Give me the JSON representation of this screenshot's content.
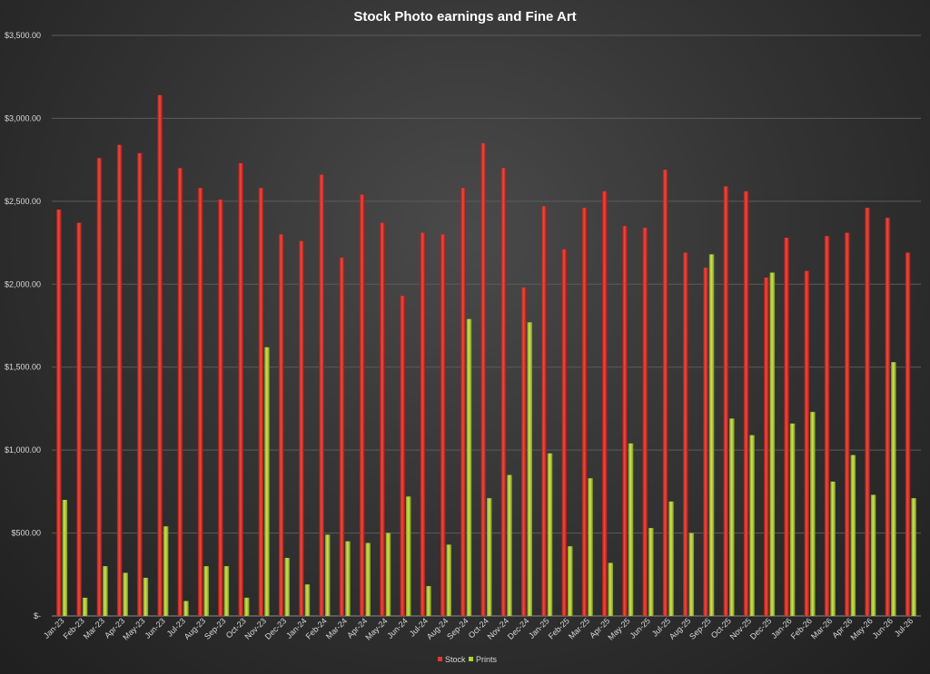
{
  "chart_data": {
    "type": "bar",
    "title": "Stock Photo earnings and Fine Art",
    "xlabel": "",
    "ylabel": "",
    "ylim": [
      0,
      3500
    ],
    "y_ticks": [
      {
        "value": 0,
        "label": "$-"
      },
      {
        "value": 500,
        "label": "$500.00"
      },
      {
        "value": 1000,
        "label": "$1,000.00"
      },
      {
        "value": 1500,
        "label": "$1,500.00"
      },
      {
        "value": 2000,
        "label": "$2,000.00"
      },
      {
        "value": 2500,
        "label": "$2,500.00"
      },
      {
        "value": 3000,
        "label": "$3,000.00"
      },
      {
        "value": 3500,
        "label": "$3,500.00"
      }
    ],
    "grid": true,
    "legend_position": "bottom",
    "categories": [
      "Jan-23",
      "Feb-23",
      "Mar-23",
      "Apr-23",
      "May-23",
      "Jun-23",
      "Jul-23",
      "Aug-23",
      "Sep-23",
      "Oct-23",
      "Nov-23",
      "Dec-23",
      "Jan-24",
      "Feb-24",
      "Mar-24",
      "Apr-24",
      "May-24",
      "Jun-24",
      "Jul-24",
      "Aug-24",
      "Sep-24",
      "Oct-24",
      "Nov-24",
      "Dec-24",
      "Jan-25",
      "Feb-25",
      "Mar-25",
      "Apr-25",
      "May-25",
      "Jun-25",
      "Jul-25",
      "Aug-25",
      "Sep-25",
      "Oct-25",
      "Nov-25",
      "Dec-25",
      "Jan-26",
      "Feb-26",
      "Mar-26",
      "Apr-26",
      "May-26",
      "Jun-26",
      "Jul-26"
    ],
    "series": [
      {
        "name": "Stock",
        "color": "#e03a32",
        "values": [
          2450,
          2370,
          2760,
          2840,
          2790,
          3140,
          2700,
          2580,
          2510,
          2730,
          2580,
          2300,
          2260,
          2660,
          2160,
          2540,
          2370,
          1930,
          2310,
          2300,
          2580,
          2850,
          2700,
          1980,
          2470,
          2210,
          2460,
          2560,
          2350,
          2340,
          2690,
          2190,
          2100,
          2590,
          2560,
          2040,
          2280,
          2080,
          2290,
          2310,
          2460,
          2400,
          2190
        ]
      },
      {
        "name": "Prints",
        "color": "#b2d235",
        "values": [
          700,
          110,
          300,
          260,
          230,
          540,
          90,
          300,
          300,
          110,
          1620,
          350,
          190,
          490,
          450,
          440,
          500,
          720,
          180,
          430,
          1790,
          710,
          850,
          1770,
          980,
          420,
          830,
          320,
          1040,
          530,
          690,
          500,
          2180,
          1190,
          1090,
          2070,
          1160,
          1230,
          810,
          970,
          730,
          1530,
          710
        ]
      }
    ]
  }
}
